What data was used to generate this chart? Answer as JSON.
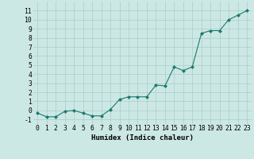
{
  "x": [
    0,
    1,
    2,
    3,
    4,
    5,
    6,
    7,
    8,
    9,
    10,
    11,
    12,
    13,
    14,
    15,
    16,
    17,
    18,
    19,
    20,
    21,
    22,
    23
  ],
  "y": [
    -0.3,
    -0.7,
    -0.7,
    -0.1,
    0.0,
    -0.3,
    -0.6,
    -0.6,
    0.1,
    1.2,
    1.5,
    1.5,
    1.5,
    2.8,
    2.7,
    4.8,
    4.4,
    4.8,
    8.5,
    8.8,
    8.8,
    10.0,
    10.5,
    11.0
  ],
  "xlabel": "Humidex (Indice chaleur)",
  "xlim": [
    -0.5,
    23.5
  ],
  "ylim": [
    -1.5,
    12.0
  ],
  "yticks": [
    -1,
    0,
    1,
    2,
    3,
    4,
    5,
    6,
    7,
    8,
    9,
    10,
    11
  ],
  "xticks": [
    0,
    1,
    2,
    3,
    4,
    5,
    6,
    7,
    8,
    9,
    10,
    11,
    12,
    13,
    14,
    15,
    16,
    17,
    18,
    19,
    20,
    21,
    22,
    23
  ],
  "line_color": "#1a7a6e",
  "marker_color": "#1a7a6e",
  "bg_color": "#cce8e4",
  "grid_color": "#aaccca",
  "xlabel_fontsize": 6.5,
  "tick_fontsize": 5.8
}
